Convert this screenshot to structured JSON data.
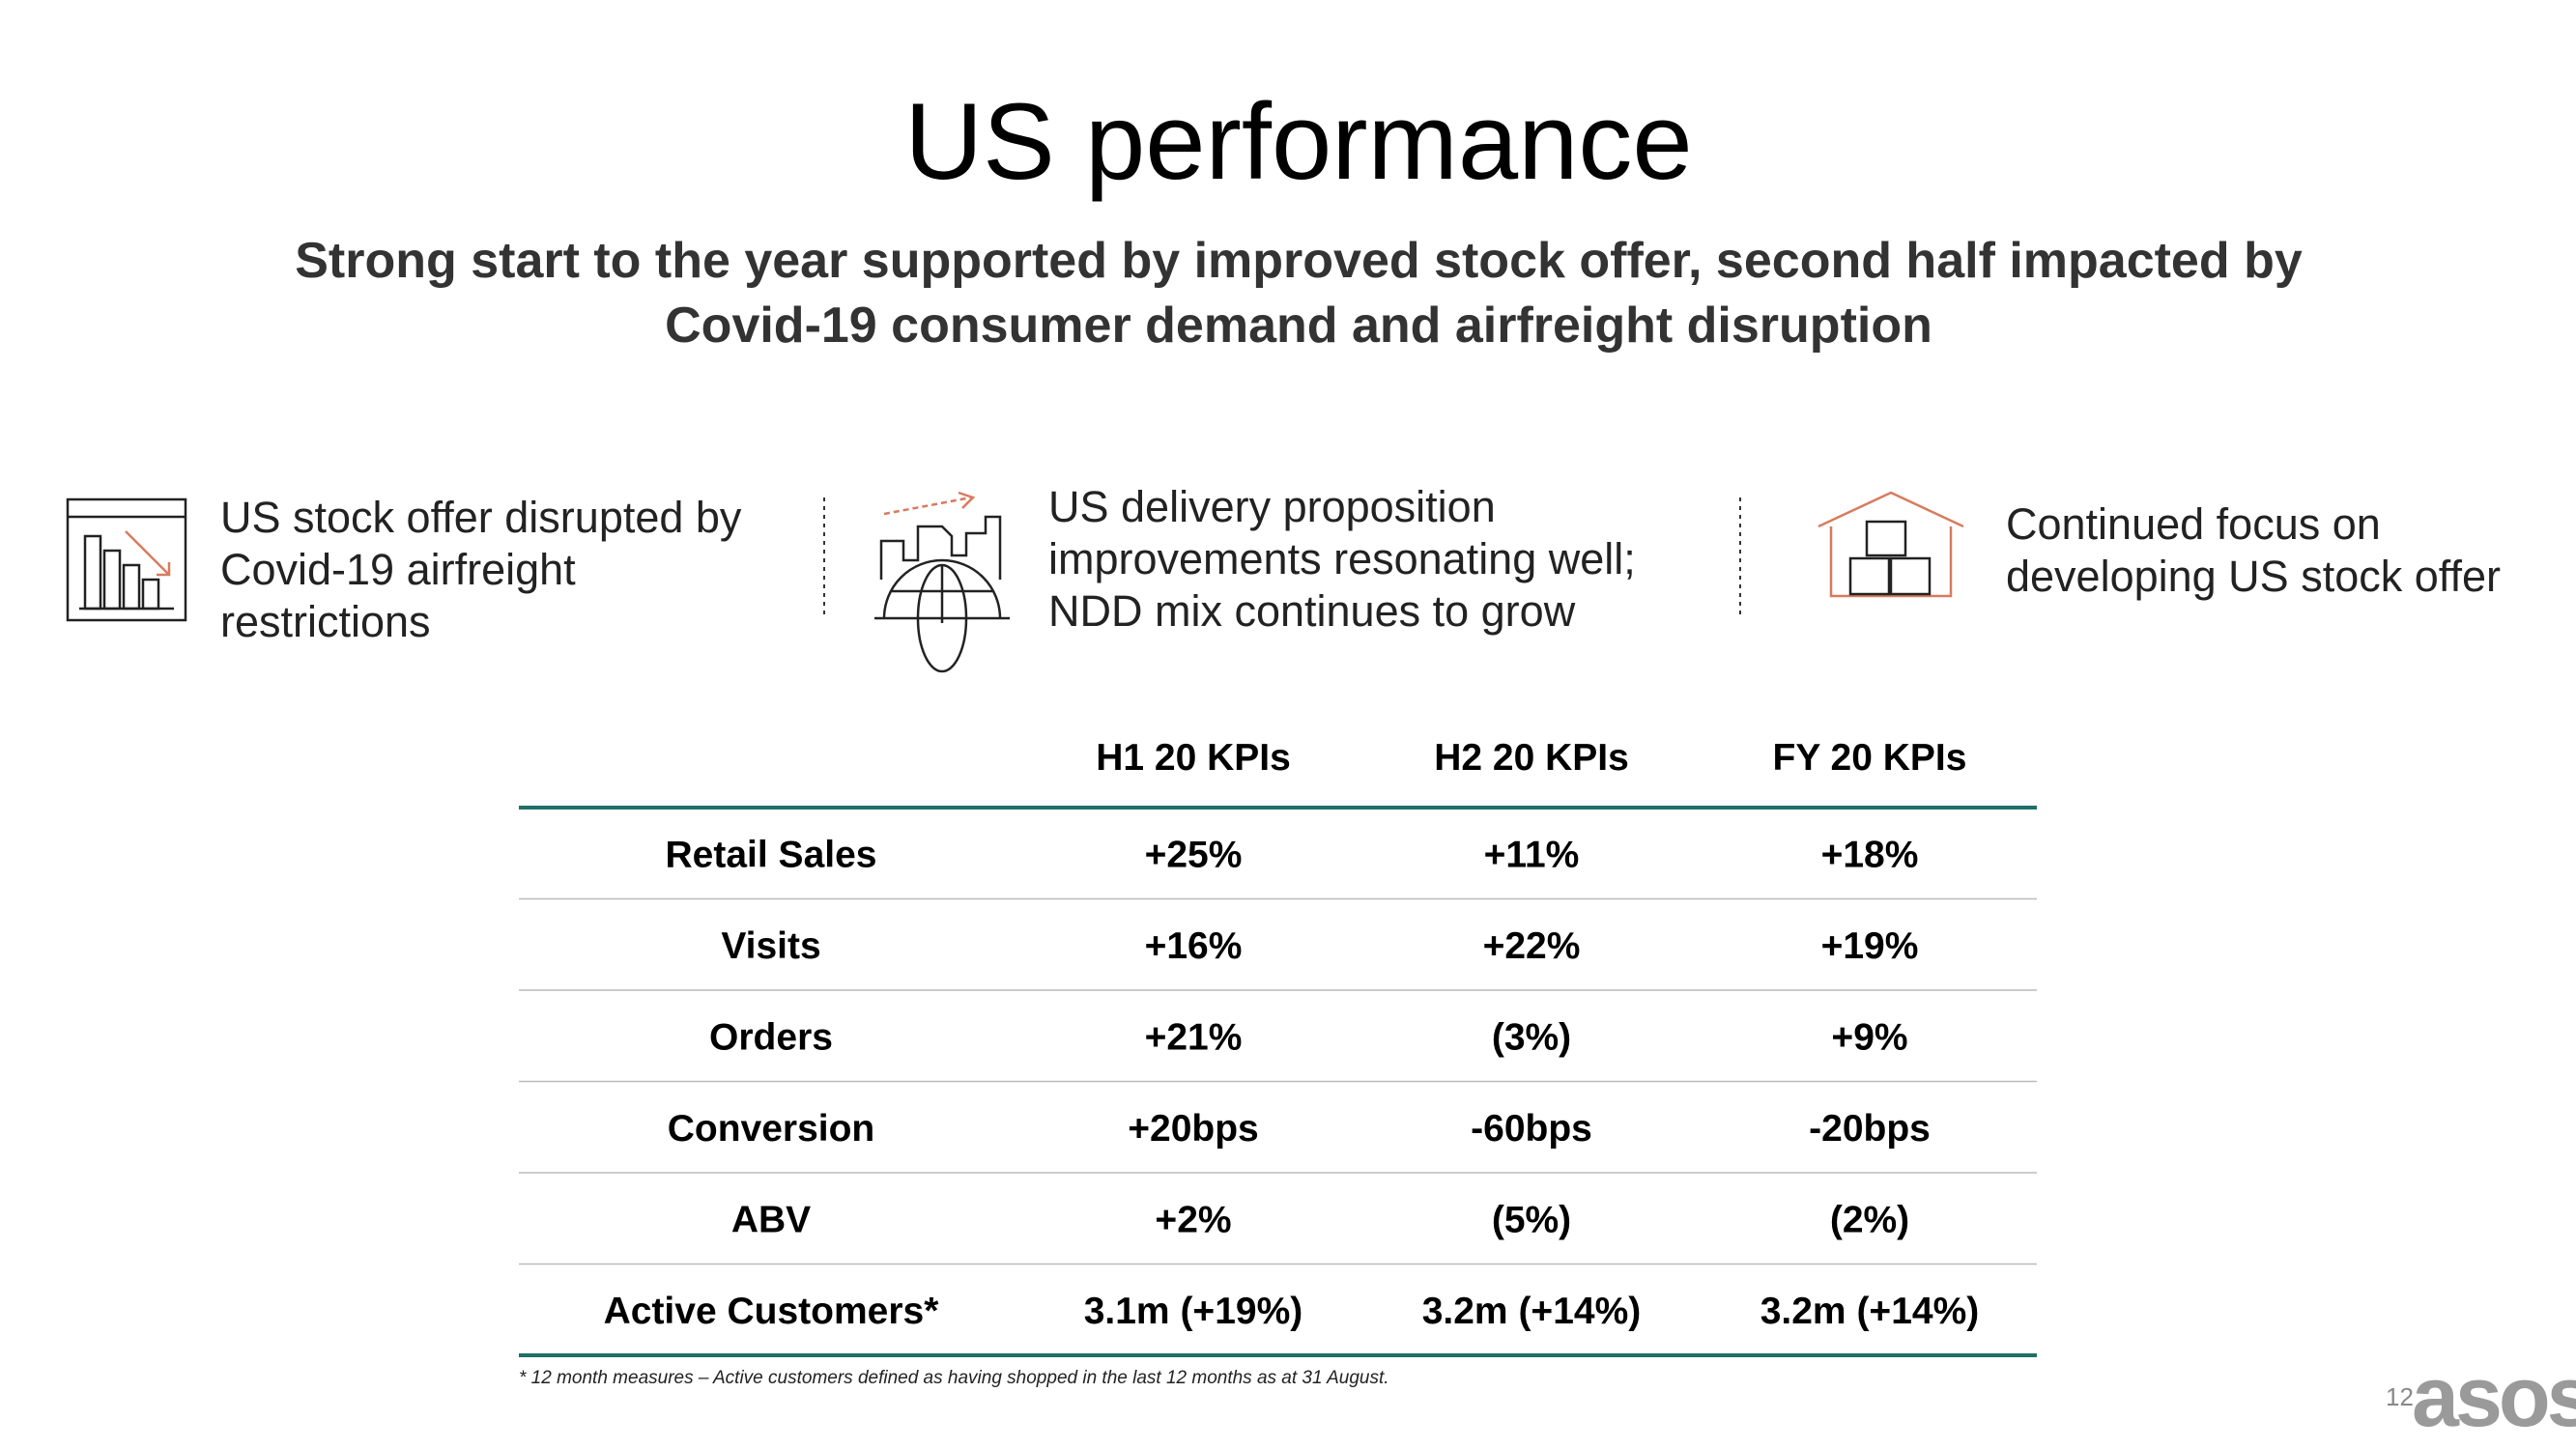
{
  "title": "US performance",
  "subtitle": [
    "Strong start to the year supported by improved stock offer, second half impacted by",
    "Covid-19 consumer demand and airfreight disruption"
  ],
  "points": [
    {
      "lines": [
        "US stock offer disrupted by",
        "Covid-19 airfreight",
        "restrictions"
      ]
    },
    {
      "lines": [
        "US delivery proposition",
        "improvements resonating well;",
        "NDD mix continues to grow"
      ]
    },
    {
      "lines": [
        "Continued focus on",
        "developing US stock offer"
      ]
    }
  ],
  "table": {
    "columns": [
      "H1 20 KPIs",
      "H2 20 KPIs",
      "FY 20 KPIs"
    ],
    "rows": [
      {
        "label": "Retail Sales",
        "values": [
          "+25%",
          "+11%",
          "+18%"
        ]
      },
      {
        "label": "Visits",
        "values": [
          "+16%",
          "+22%",
          "+19%"
        ]
      },
      {
        "label": "Orders",
        "values": [
          "+21%",
          "(3%)",
          "+9%"
        ]
      },
      {
        "label": "Conversion",
        "values": [
          "+20bps",
          "-60bps",
          "-20bps"
        ]
      },
      {
        "label": "ABV",
        "values": [
          "+2%",
          "(5%)",
          "(2%)"
        ]
      },
      {
        "label": "Active Customers*",
        "values": [
          "3.1m (+19%)",
          "3.2m (+14%)",
          "3.2m (+14%)"
        ]
      }
    ]
  },
  "footnote": "* 12 month measures – Active customers defined as having shopped in the last 12 months as at 31 August.",
  "page_number": "12",
  "logo": "asos"
}
